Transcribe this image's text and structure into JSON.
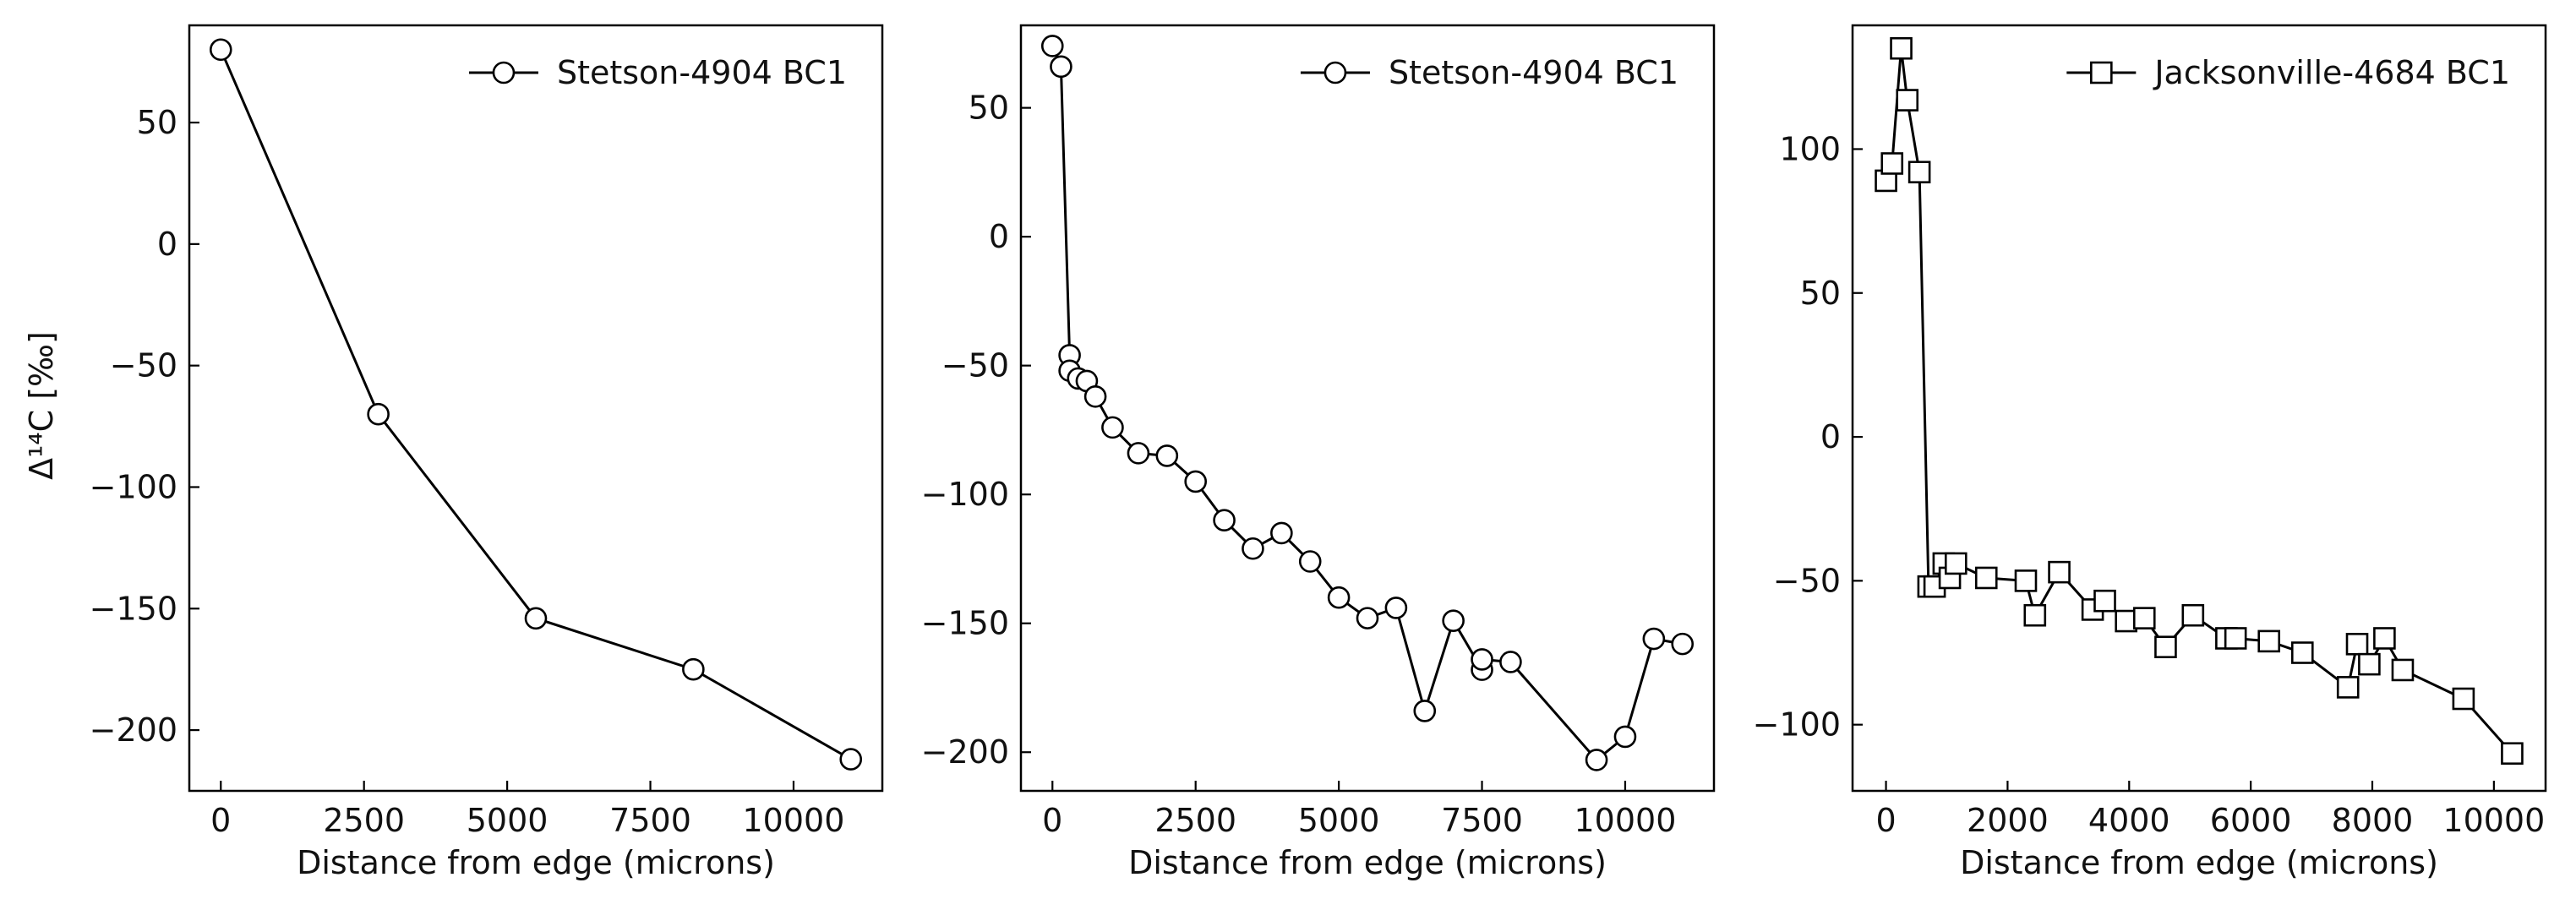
{
  "figure": {
    "ylabel": "Δ¹⁴C [‰]"
  },
  "chart_data": [
    {
      "type": "line",
      "xlabel": "Distance from edge (microns)",
      "ylabel": "Δ¹⁴C [‰]",
      "xlim": [
        -550,
        11550
      ],
      "ylim": [
        -225,
        90
      ],
      "xticks": [
        0,
        2500,
        5000,
        7500,
        10000
      ],
      "yticks": [
        50,
        0,
        -50,
        -100,
        -150,
        -200
      ],
      "legend_position": "upper-right",
      "marker": "circle",
      "series": [
        {
          "name": "Stetson-4904 BC1",
          "x": [
            0,
            2750,
            5500,
            8250,
            11000
          ],
          "y": [
            80,
            -70,
            -154,
            -175,
            -212
          ]
        }
      ]
    },
    {
      "type": "line",
      "xlabel": "Distance from edge (microns)",
      "ylabel": "",
      "xlim": [
        -550,
        11550
      ],
      "ylim": [
        -215,
        82
      ],
      "xticks": [
        0,
        2500,
        5000,
        7500,
        10000
      ],
      "yticks": [
        50,
        0,
        -50,
        -100,
        -150,
        -200
      ],
      "legend_position": "upper-right",
      "marker": "circle",
      "series": [
        {
          "name": "Stetson-4904 BC1",
          "x": [
            0,
            150,
            300,
            300,
            450,
            600,
            750,
            1050,
            1500,
            2000,
            2500,
            3000,
            3500,
            4000,
            4500,
            5000,
            5500,
            6000,
            6500,
            7000,
            7500,
            7500,
            8000,
            9500,
            10000,
            10500,
            11000
          ],
          "y": [
            74,
            66,
            -46,
            -52,
            -55,
            -56,
            -62,
            -74,
            -84,
            -85,
            -95,
            -110,
            -121,
            -115,
            -126,
            -140,
            -148,
            -144,
            -184,
            -149,
            -168,
            -164,
            -165,
            -203,
            -194,
            -156,
            -158
          ]
        }
      ]
    },
    {
      "type": "line",
      "xlabel": "Distance from edge (microns)",
      "ylabel": "",
      "xlim": [
        -550,
        10850
      ],
      "ylim": [
        -123,
        143
      ],
      "xticks": [
        0,
        2000,
        4000,
        6000,
        8000,
        10000
      ],
      "yticks": [
        100,
        50,
        0,
        -50,
        -100
      ],
      "legend_position": "upper-right",
      "marker": "square",
      "series": [
        {
          "name": "Jacksonville-4684 BC1",
          "x": [
            0,
            100,
            250,
            350,
            550,
            700,
            800,
            950,
            1050,
            1150,
            1650,
            2300,
            2450,
            2850,
            3400,
            3600,
            3950,
            4250,
            4600,
            5050,
            5600,
            5750,
            6300,
            6850,
            7600,
            7750,
            7950,
            8200,
            8500,
            9500,
            10300
          ],
          "y": [
            89,
            95,
            135,
            117,
            92,
            -52,
            -52,
            -44,
            -49,
            -44,
            -49,
            -50,
            -62,
            -47,
            -60,
            -57,
            -64,
            -63,
            -73,
            -62,
            -70,
            -70,
            -71,
            -75,
            -87,
            -72,
            -79,
            -70,
            -81,
            -91,
            -110
          ]
        }
      ]
    }
  ]
}
